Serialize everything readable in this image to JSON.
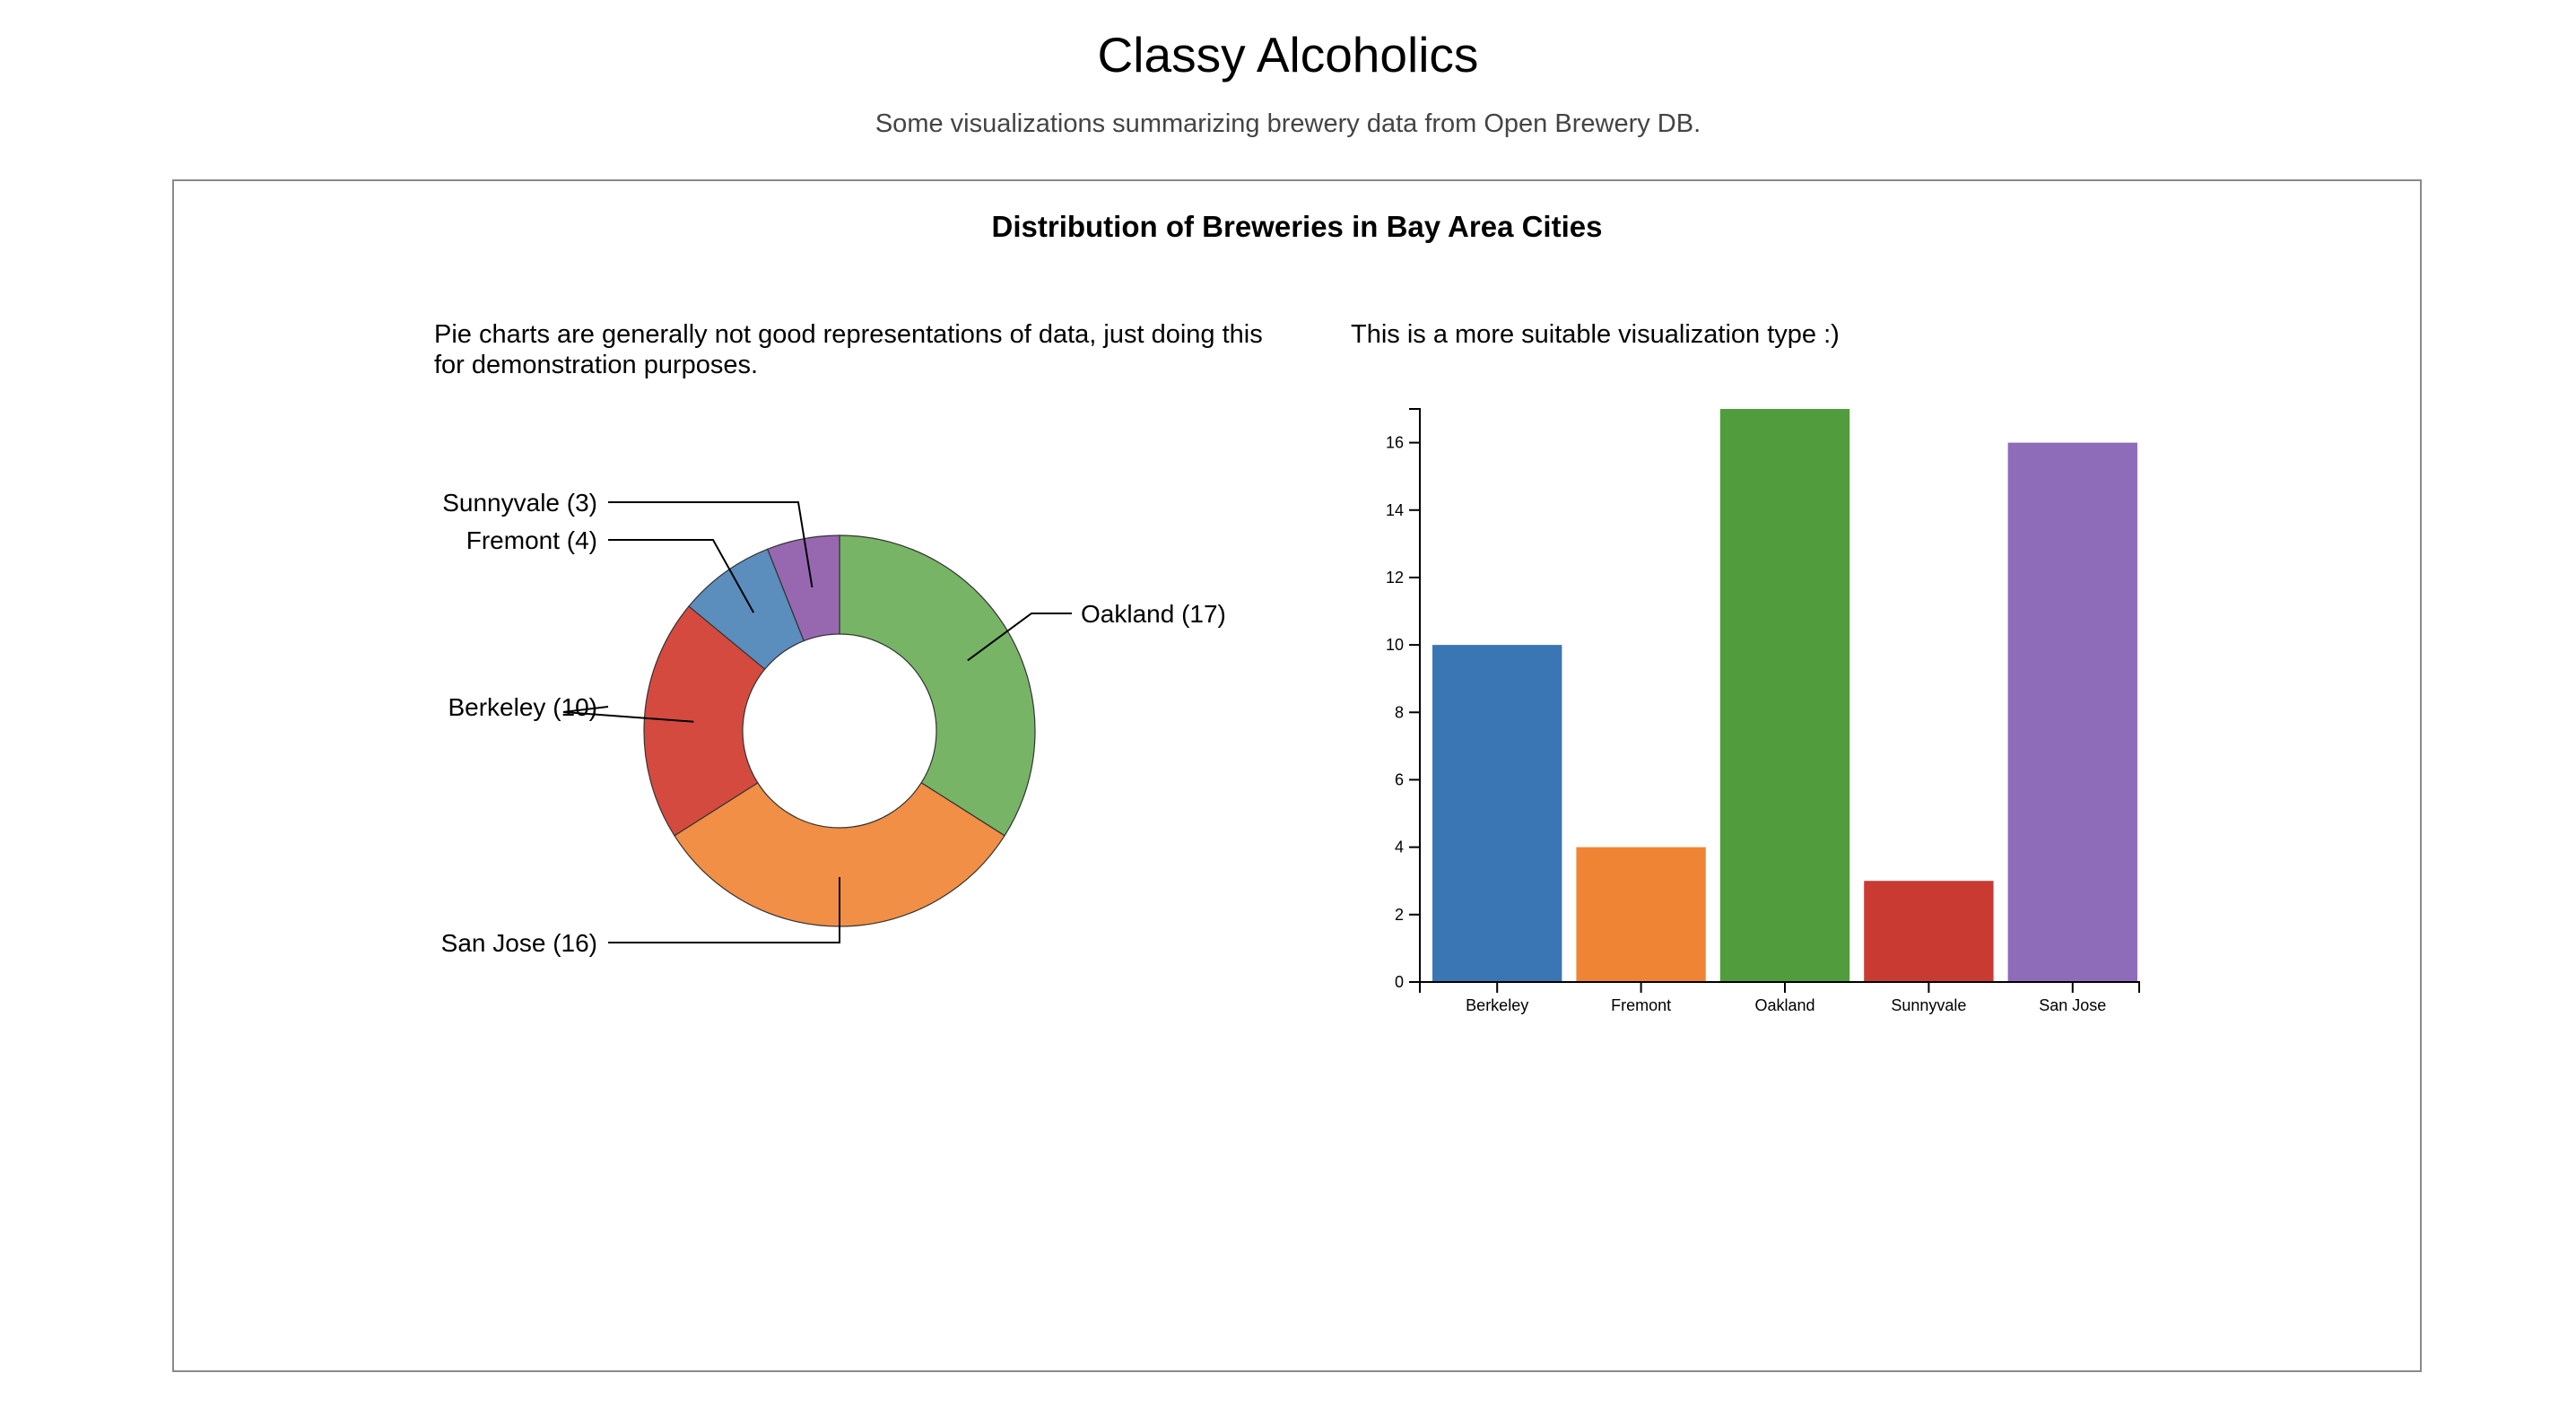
{
  "header": {
    "title": "Classy Alcoholics",
    "subtitle": "Some visualizations summarizing brewery data from Open Brewery DB."
  },
  "panel": {
    "title": "Distribution of Breweries in Bay Area Cities",
    "pie_note": "Pie charts are generally not good representations of data, just doing this for demonstration purposes.",
    "bar_note": "This is a more suitable visualization type :)"
  },
  "chart_data": [
    {
      "type": "pie",
      "variant": "donut",
      "title": "",
      "slices": [
        {
          "label": "Oakland",
          "value": 17,
          "display": "Oakland (17)",
          "color": "#77b466"
        },
        {
          "label": "San Jose",
          "value": 16,
          "display": "San Jose (16)",
          "color": "#f08f45"
        },
        {
          "label": "Berkeley",
          "value": 10,
          "display": "Berkeley (10)",
          "color": "#d54a3f"
        },
        {
          "label": "Fremont",
          "value": 4,
          "display": "Fremont (4)",
          "color": "#5b8dbd"
        },
        {
          "label": "Sunnyvale",
          "value": 3,
          "display": "Sunnyvale (3)",
          "color": "#9768b0"
        }
      ]
    },
    {
      "type": "bar",
      "title": "",
      "xlabel": "",
      "ylabel": "",
      "categories": [
        "Berkeley",
        "Fremont",
        "Oakland",
        "Sunnyvale",
        "San Jose"
      ],
      "values": [
        10,
        4,
        17,
        3,
        16
      ],
      "colors": [
        "#3a76b4",
        "#ef8534",
        "#519d3d",
        "#c93a33",
        "#8f6cba"
      ],
      "ylim": [
        0,
        17
      ],
      "yticks": [
        0,
        2,
        4,
        6,
        8,
        10,
        12,
        14,
        16
      ],
      "grid": false
    }
  ]
}
